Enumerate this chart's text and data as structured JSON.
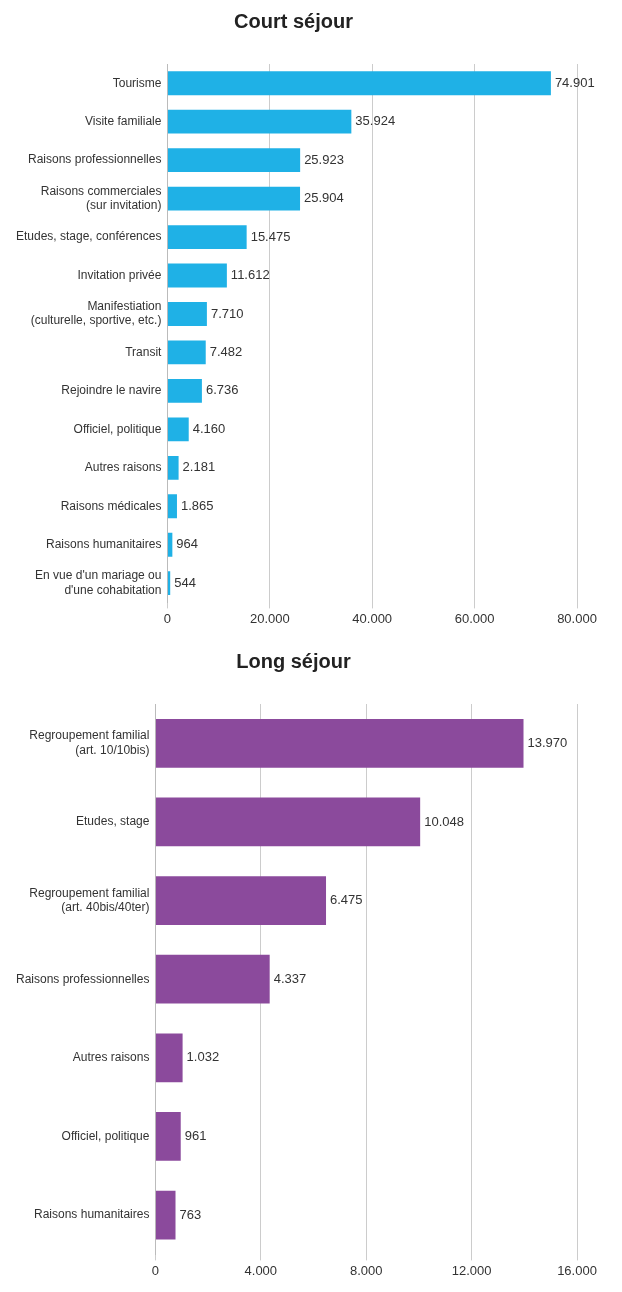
{
  "chart_data": [
    {
      "type": "bar",
      "title": "Court séjour",
      "orientation": "horizontal",
      "grid": "x",
      "legend": false,
      "categories": [
        "Tourisme",
        "Visite familiale",
        "Raisons professionnelles",
        "Raisons commerciales\n(sur invitation)",
        "Etudes, stage, conférences",
        "Invitation privée",
        "Manifestiation\n(culturelle, sportive, etc.)",
        "Transit",
        "Rejoindre le navire",
        "Officiel, politique",
        "Autres raisons",
        "Raisons médicales",
        "Raisons humanitaires",
        "En vue d'un mariage ou\nd'une cohabitation"
      ],
      "values": [
        74901,
        35924,
        25923,
        25904,
        15475,
        11612,
        7710,
        7482,
        6736,
        4160,
        2181,
        1865,
        964,
        544
      ],
      "value_labels": [
        "74.901",
        "35.924",
        "25.923",
        "25.904",
        "15.475",
        "11.612",
        "7.710",
        "7.482",
        "6.736",
        "4.160",
        "2.181",
        "1.865",
        "964",
        "544"
      ],
      "color": "#1fb1e6",
      "xlim": [
        0,
        80000
      ],
      "xticks": [
        0,
        {
          "value": 20000,
          "label": "20.000"
        },
        {
          "value": 40000,
          "label": "40.000"
        },
        {
          "value": 60000,
          "label": "60.000"
        },
        {
          "value": 80000,
          "label": "80.000"
        }
      ]
    },
    {
      "type": "bar",
      "title": "Long séjour",
      "orientation": "horizontal",
      "grid": "x",
      "legend": false,
      "categories": [
        "Regroupement familial\n(art. 10/10bis)",
        "Etudes, stage",
        "Regroupement familial\n(art. 40bis/40ter)",
        "Raisons professionnelles",
        "Autres raisons",
        "Officiel, politique",
        "Raisons humanitaires"
      ],
      "values": [
        13970,
        10048,
        6475,
        4337,
        1032,
        961,
        763
      ],
      "value_labels": [
        "13.970",
        "10.048",
        "6.475",
        "4.337",
        "1.032",
        "961",
        "763"
      ],
      "color": "#8b4a9c",
      "xlim": [
        0,
        16000
      ],
      "xticks": [
        0,
        {
          "value": 4000,
          "label": "4.000"
        },
        {
          "value": 8000,
          "label": "8.000"
        },
        {
          "value": 12000,
          "label": "12.000"
        },
        {
          "value": 16000,
          "label": "16.000"
        }
      ]
    }
  ]
}
